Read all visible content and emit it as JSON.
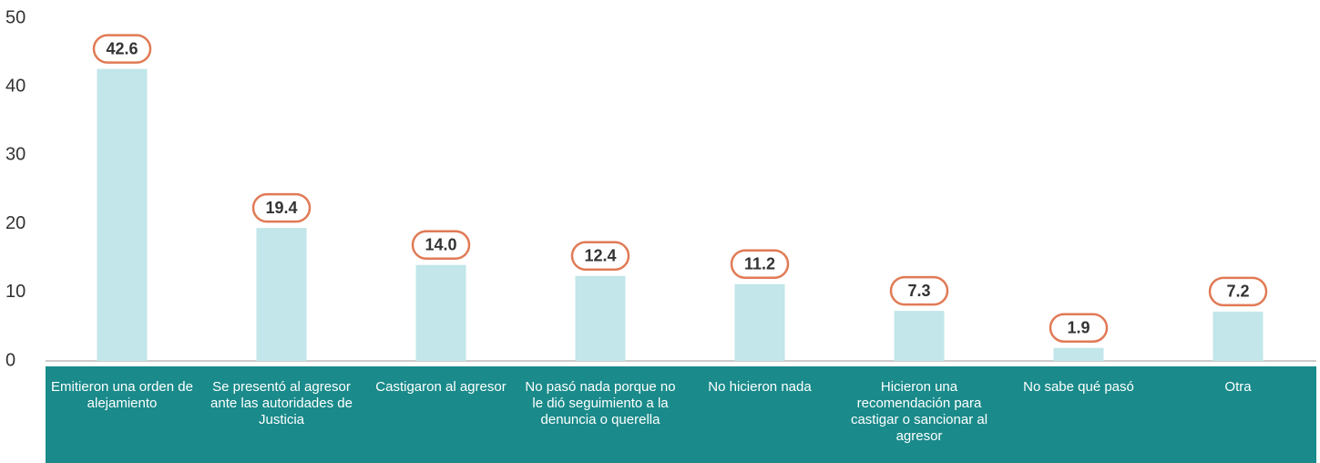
{
  "chart_data": {
    "type": "bar",
    "categories": [
      "Emitieron una orden de alejamiento",
      "Se presentó al agresor ante las autoridades de Justicia",
      "Castigaron al agresor",
      "No pasó nada porque no le dió seguimiento a la denuncia o querella",
      "No hicieron nada",
      "Hicieron una recomendación para castigar o sancionar al agresor",
      "No sabe qué pasó",
      "Otra"
    ],
    "values": [
      42.6,
      19.4,
      14,
      12.4,
      11.2,
      7.3,
      1.9,
      7.2
    ],
    "value_labels": [
      "42.6",
      "19.4",
      "14.0",
      "12.4",
      "11.2",
      "7.3",
      "1.9",
      "7.2"
    ],
    "color": "#c2e6ea",
    "ylim": [
      0,
      50
    ],
    "yticks": [
      0,
      10,
      20,
      30,
      40,
      50
    ],
    "grid": false
  }
}
